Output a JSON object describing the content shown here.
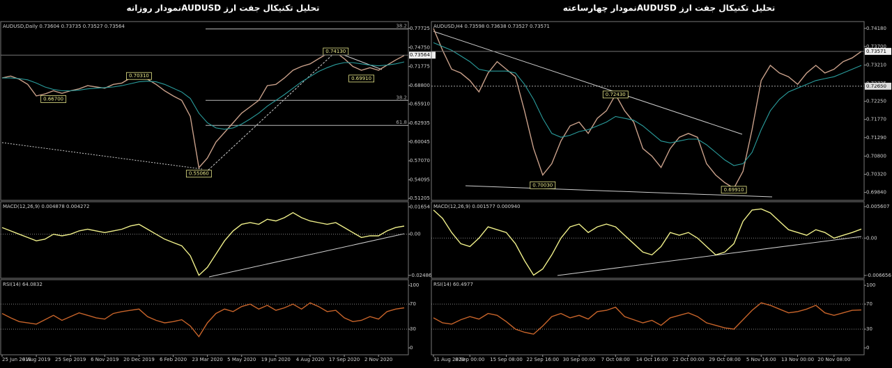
{
  "page_titles": [
    "تحلیل تکنیکال جفت ارز  AUDUSDنمودار روزانه",
    "تحلیل تکنیکال جفت ارز  AUDUSDنمودار چهارساعته"
  ],
  "chart_data": [
    {
      "type": "line",
      "title": "AUDUSD,Daily  0.73604 0.73735 0.73527 0.73564",
      "ylim": [
        0.509,
        0.788
      ],
      "yticks": [
        0.77725,
        {
          "value": 0.7475,
          "label": "0.74750"
        },
        0.71775,
        {
          "value": 0.688,
          "label": "0.68800"
        },
        {
          "value": 0.6591,
          "label": "0.65910"
        },
        0.62935,
        0.60045,
        {
          "value": 0.5707,
          "label": "0.57070"
        },
        0.54095,
        0.51205
      ],
      "series": [
        {
          "color": "#c9a08a",
          "values": [
            0.7,
            0.703,
            0.698,
            0.69,
            0.672,
            0.675,
            0.68,
            0.676,
            0.68,
            0.683,
            0.688,
            0.686,
            0.684,
            0.69,
            0.692,
            0.7,
            0.702,
            0.698,
            0.69,
            0.68,
            0.672,
            0.665,
            0.64,
            0.56,
            0.575,
            0.6,
            0.615,
            0.63,
            0.645,
            0.655,
            0.665,
            0.688,
            0.69,
            0.7,
            0.712,
            0.718,
            0.722,
            0.73,
            0.738,
            0.74,
            0.73,
            0.718,
            0.712,
            0.716,
            0.712,
            0.72,
            0.728,
            0.735
          ]
        },
        {
          "color": "#2a9d9d",
          "values": [
            0.7,
            0.7,
            0.699,
            0.697,
            0.692,
            0.686,
            0.682,
            0.68,
            0.68,
            0.681,
            0.683,
            0.684,
            0.685,
            0.686,
            0.688,
            0.691,
            0.694,
            0.695,
            0.694,
            0.69,
            0.684,
            0.678,
            0.668,
            0.645,
            0.63,
            0.622,
            0.62,
            0.622,
            0.628,
            0.636,
            0.645,
            0.656,
            0.665,
            0.674,
            0.684,
            0.694,
            0.702,
            0.71,
            0.716,
            0.721,
            0.724,
            0.724,
            0.722,
            0.72,
            0.719,
            0.72,
            0.722,
            0.725
          ]
        }
      ],
      "annotations": [
        {
          "value": 0.667,
          "label": "0.66700",
          "index": 6
        },
        {
          "value": 0.7031,
          "label": "0.70310",
          "index": 16
        },
        {
          "value": 0.5506,
          "label": "0.55060",
          "index": 23
        },
        {
          "value": 0.7413,
          "label": "0.74130",
          "index": 39
        },
        {
          "value": 0.6991,
          "label": "0.69910",
          "index": 42
        }
      ],
      "fib_levels": [
        {
          "value": 0.7765,
          "label": "38.2"
        },
        {
          "value": 0.665,
          "label": "38.2"
        },
        {
          "value": 0.626,
          "label": "61.8"
        }
      ],
      "last_price": 0.73564
    },
    {
      "type": "line",
      "title": "MACD(12,26,9) 0.004878 0.004272",
      "ylim": [
        -0.0266,
        0.0196
      ],
      "yticks": [
        0.01654,
        {
          "value": 0,
          "label": "0.00"
        },
        -0.02486
      ],
      "hlines": [
        0
      ],
      "series": [
        {
          "color": "#f0f08a",
          "values": [
            0.004,
            0.002,
            0.0,
            -0.002,
            -0.004,
            -0.003,
            0.0,
            -0.001,
            0.0,
            0.002,
            0.003,
            0.002,
            0.001,
            0.002,
            0.003,
            0.005,
            0.006,
            0.003,
            0.0,
            -0.003,
            -0.005,
            -0.007,
            -0.013,
            -0.0248,
            -0.02,
            -0.012,
            -0.004,
            0.002,
            0.006,
            0.007,
            0.006,
            0.009,
            0.008,
            0.01,
            0.013,
            0.01,
            0.008,
            0.007,
            0.006,
            0.007,
            0.004,
            0.001,
            -0.002,
            -0.001,
            -0.001,
            0.002,
            0.004,
            0.0049
          ]
        }
      ]
    },
    {
      "type": "line",
      "title": "RSI(14) 64.0832",
      "ylim": [
        -11,
        109
      ],
      "yticks": [
        100,
        70,
        30,
        0
      ],
      "hlines": [
        70,
        30
      ],
      "categories": [
        "25 Jun 2019",
        null,
        null,
        null,
        "8 Aug 2019",
        null,
        null,
        null,
        "25 Sep 2019",
        null,
        null,
        null,
        "6 Nov 2019",
        null,
        null,
        null,
        "20 Dec 2019",
        null,
        null,
        null,
        "6 Feb 2020",
        null,
        null,
        null,
        "23 Mar 2020",
        null,
        null,
        null,
        "5 May 2020",
        null,
        null,
        null,
        "19 Jun 2020",
        null,
        null,
        null,
        "4 Aug 2020",
        null,
        null,
        null,
        "17 Sep 2020",
        null,
        null,
        null,
        "2 Nov 2020",
        null,
        null,
        null
      ],
      "series": [
        {
          "color": "#c8642a",
          "values": [
            55,
            48,
            42,
            40,
            38,
            45,
            52,
            44,
            50,
            56,
            52,
            48,
            46,
            55,
            58,
            60,
            62,
            50,
            44,
            40,
            42,
            45,
            35,
            18,
            40,
            55,
            62,
            58,
            66,
            70,
            62,
            68,
            60,
            64,
            70,
            62,
            72,
            66,
            58,
            60,
            48,
            42,
            44,
            50,
            46,
            58,
            62,
            64
          ]
        }
      ]
    },
    {
      "type": "line",
      "title": "AUDUSD,H4  0.73598 0.73638 0.73527 0.73571",
      "ylim": [
        0.6963,
        0.7436
      ],
      "yticks": [
        {
          "value": 0.7418,
          "label": "0.74180"
        },
        {
          "value": 0.737,
          "label": "0.73700"
        },
        {
          "value": 0.7321,
          "label": "0.73210"
        },
        0.72725,
        {
          "value": 0.7225,
          "label": "0.72250"
        },
        {
          "value": 0.7177,
          "label": "0.71770"
        },
        {
          "value": 0.7129,
          "label": "0.71290"
        },
        {
          "value": 0.708,
          "label": "0.70800"
        },
        {
          "value": 0.7032,
          "label": "0.70320"
        },
        {
          "value": 0.6984,
          "label": "0.69840"
        }
      ],
      "series": [
        {
          "color": "#c9a08a",
          "values": [
            0.7418,
            0.736,
            0.731,
            0.73,
            0.728,
            0.725,
            0.73,
            0.733,
            0.731,
            0.729,
            0.72,
            0.71,
            0.703,
            0.706,
            0.712,
            0.716,
            0.717,
            0.714,
            0.718,
            0.72,
            0.7243,
            0.72,
            0.717,
            0.71,
            0.708,
            0.705,
            0.71,
            0.713,
            0.714,
            0.713,
            0.706,
            0.703,
            0.701,
            0.6995,
            0.704,
            0.715,
            0.728,
            0.732,
            0.73,
            0.729,
            0.727,
            0.73,
            0.732,
            0.73,
            0.731,
            0.733,
            0.734,
            0.7357
          ]
        },
        {
          "color": "#2a9d9d",
          "values": [
            0.738,
            0.737,
            0.736,
            0.7345,
            0.733,
            0.731,
            0.7305,
            0.7305,
            0.7305,
            0.73,
            0.727,
            0.723,
            0.718,
            0.714,
            0.713,
            0.7135,
            0.7145,
            0.715,
            0.716,
            0.717,
            0.7185,
            0.718,
            0.7175,
            0.716,
            0.714,
            0.712,
            0.7115,
            0.712,
            0.7125,
            0.7125,
            0.711,
            0.709,
            0.707,
            0.7055,
            0.706,
            0.709,
            0.715,
            0.72,
            0.723,
            0.725,
            0.726,
            0.727,
            0.728,
            0.7285,
            0.729,
            0.73,
            0.731,
            0.732
          ]
        }
      ],
      "annotations": [
        {
          "value": 0.7003,
          "label": "0.70030",
          "index": 12
        },
        {
          "value": 0.7243,
          "label": "0.72430",
          "index": 20
        },
        {
          "value": 0.6991,
          "label": "0.69910",
          "index": 33
        }
      ],
      "price_levels": [
        {
          "value": 0.7265,
          "label": "0.72650"
        }
      ],
      "last_price": 0.73571
    },
    {
      "type": "line",
      "title": "MACD(12,26,9) 0.001577 0.000940",
      "ylim": [
        -0.00716,
        0.006479
      ],
      "yticks": [
        0.005607,
        {
          "value": 0,
          "label": "0.00"
        },
        -0.006656
      ],
      "hlines": [
        0
      ],
      "series": [
        {
          "color": "#f0f08a",
          "values": [
            0.005,
            0.0035,
            0.001,
            -0.001,
            -0.0015,
            0.0,
            0.002,
            0.0015,
            0.001,
            -0.001,
            -0.004,
            -0.0066,
            -0.0055,
            -0.003,
            0.0,
            0.002,
            0.0025,
            0.001,
            0.002,
            0.0025,
            0.002,
            0.0005,
            -0.001,
            -0.0025,
            -0.003,
            -0.0015,
            0.001,
            0.0005,
            0.001,
            0.0,
            -0.0015,
            -0.003,
            -0.0025,
            -0.001,
            0.003,
            0.005,
            0.0052,
            0.0045,
            0.003,
            0.0015,
            0.001,
            0.0005,
            0.0015,
            0.001,
            0.0,
            0.0005,
            0.001,
            0.0016
          ]
        }
      ]
    },
    {
      "type": "line",
      "title": "RSI(14) 60.4977",
      "ylim": [
        -11,
        109
      ],
      "yticks": [
        100,
        70,
        30,
        0
      ],
      "hlines": [
        70,
        30
      ],
      "categories": [
        "31 Aug 2020",
        null,
        null,
        null,
        "8 Sep 00:00",
        null,
        null,
        null,
        "15 Sep 08:00",
        null,
        null,
        null,
        "22 Sep 16:00",
        null,
        null,
        null,
        "30 Sep 00:00",
        null,
        null,
        null,
        "7 Oct 08:00",
        null,
        null,
        null,
        "14 Oct 16:00",
        null,
        null,
        null,
        "22 Oct 00:00",
        null,
        null,
        null,
        "29 Oct 08:00",
        null,
        null,
        null,
        "5 Nov 16:00",
        null,
        null,
        null,
        "13 Nov 00:00",
        null,
        null,
        null,
        "20 Nov 08:00",
        null,
        null,
        null
      ],
      "series": [
        {
          "color": "#c8642a",
          "values": [
            48,
            40,
            38,
            45,
            50,
            46,
            55,
            52,
            42,
            30,
            25,
            22,
            35,
            50,
            55,
            48,
            52,
            46,
            58,
            60,
            65,
            50,
            45,
            40,
            44,
            36,
            48,
            52,
            56,
            50,
            40,
            36,
            32,
            30,
            45,
            60,
            72,
            68,
            62,
            56,
            58,
            62,
            68,
            56,
            52,
            56,
            60,
            60.5
          ]
        }
      ]
    }
  ]
}
